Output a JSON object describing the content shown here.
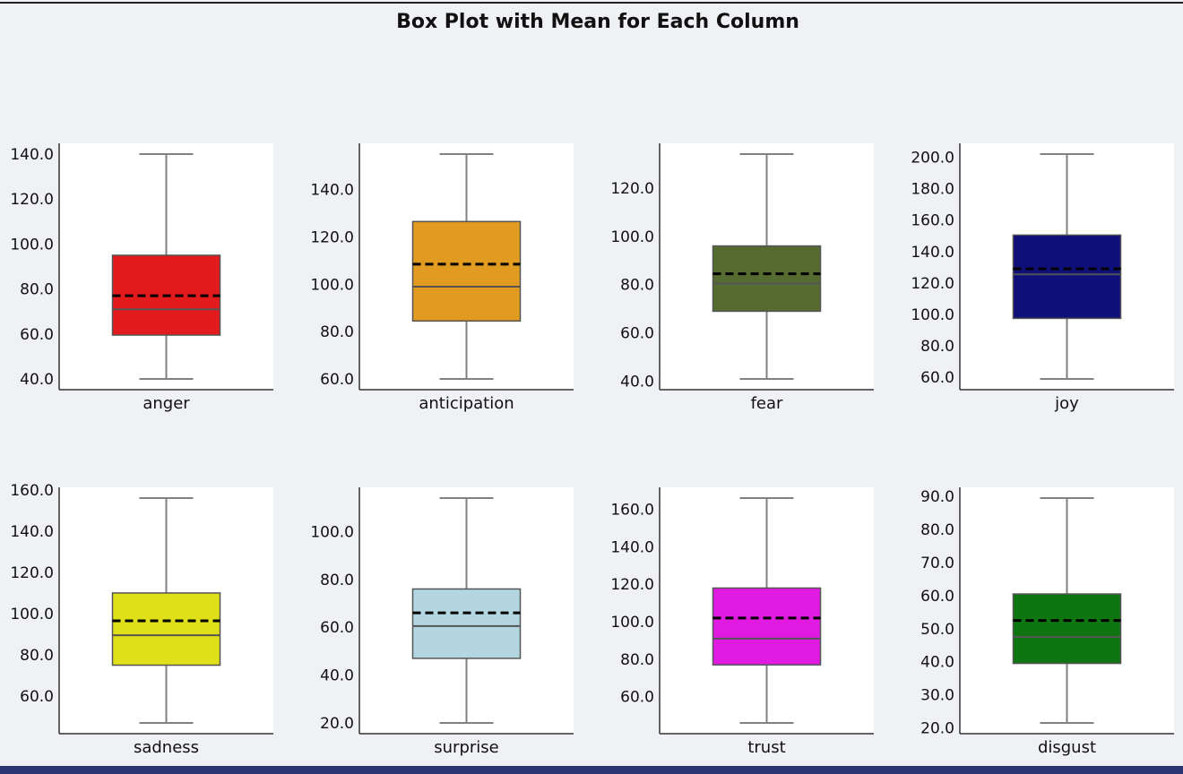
{
  "chart_data": {
    "type": "box",
    "title": "Box Plot with Mean for Each Column",
    "grid": false,
    "panels": [
      {
        "name": "anger",
        "color": "#e31a1c",
        "min": 40,
        "q1": 59.5,
        "median": 71,
        "q3": 95,
        "max": 140,
        "mean": 77,
        "ticks": [
          40,
          60,
          80,
          100,
          120,
          140
        ]
      },
      {
        "name": "anticipation",
        "color": "#e09b20",
        "min": 60,
        "q1": 84.5,
        "median": 99,
        "q3": 126.5,
        "max": 155,
        "mean": 108.5,
        "ticks": [
          60,
          80,
          100,
          120,
          140
        ]
      },
      {
        "name": "fear",
        "color": "#556b2f",
        "min": 41,
        "q1": 69,
        "median": 80.5,
        "q3": 96,
        "max": 134,
        "mean": 84.5,
        "ticks": [
          40,
          60,
          80,
          100,
          120
        ]
      },
      {
        "name": "joy",
        "color": "#0f0f7a",
        "min": 59,
        "q1": 97.5,
        "median": 125.5,
        "q3": 150.5,
        "max": 202,
        "mean": 129,
        "ticks": [
          60,
          80,
          100,
          120,
          140,
          160,
          180,
          200
        ]
      },
      {
        "name": "sadness",
        "color": "#e0e01a",
        "min": 47,
        "q1": 75,
        "median": 89.5,
        "q3": 110,
        "max": 156,
        "mean": 96.5,
        "ticks": [
          60,
          80,
          100,
          120,
          140,
          160
        ]
      },
      {
        "name": "surprise",
        "color": "#b3d6e1",
        "min": 20,
        "q1": 47,
        "median": 60.5,
        "q3": 76,
        "max": 114,
        "mean": 66,
        "ticks": [
          20,
          40,
          60,
          80,
          100
        ]
      },
      {
        "name": "trust",
        "color": "#e01ae0",
        "min": 46,
        "q1": 77,
        "median": 91,
        "q3": 118,
        "max": 166,
        "mean": 102,
        "ticks": [
          60,
          80,
          100,
          120,
          140,
          160
        ]
      },
      {
        "name": "disgust",
        "color": "#0f7510",
        "min": 21.5,
        "q1": 39.5,
        "median": 47.5,
        "q3": 60.5,
        "max": 89.5,
        "mean": 52.5,
        "ticks": [
          20,
          30,
          40,
          50,
          60,
          70,
          80,
          90
        ]
      }
    ]
  }
}
